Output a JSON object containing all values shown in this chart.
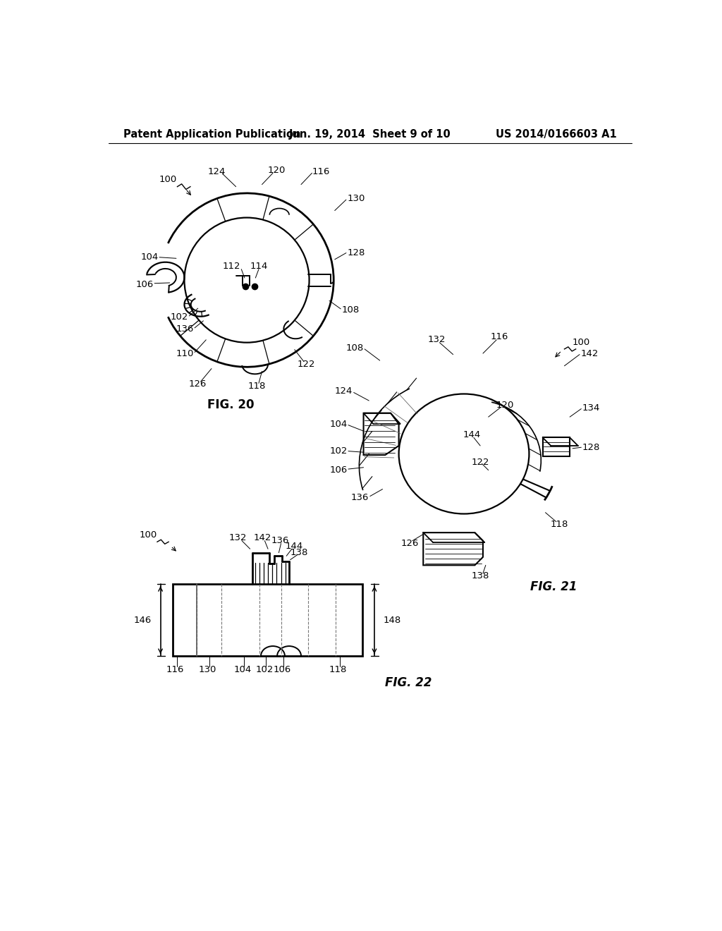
{
  "header_left": "Patent Application Publication",
  "header_center": "Jun. 19, 2014  Sheet 9 of 10",
  "header_right": "US 2014/0166603 A1",
  "fig20_label": "FIG. 20",
  "fig21_label": "FIG. 21",
  "fig22_label": "FIG. 22",
  "bg_color": "#ffffff",
  "line_color": "#000000",
  "font_size_header": 10.5,
  "font_size_ref": 9.5,
  "font_size_fig": 12
}
